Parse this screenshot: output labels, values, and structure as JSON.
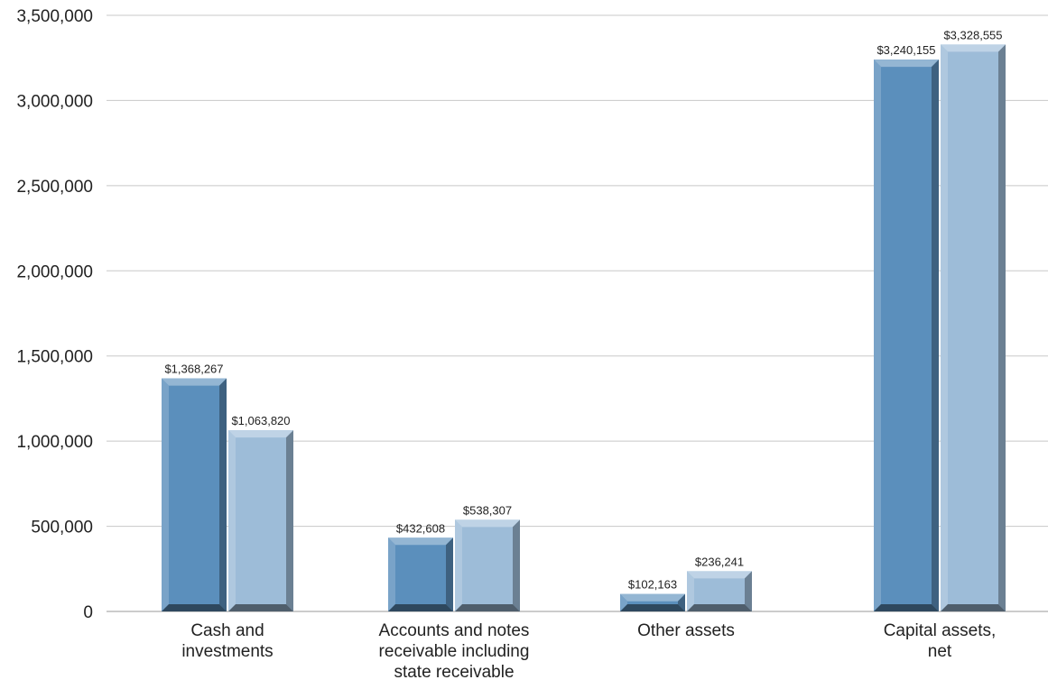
{
  "chart_data": {
    "type": "bar",
    "categories": [
      [
        "Cash and",
        "investments"
      ],
      [
        "Accounts and notes",
        "receivable including",
        "state receivable"
      ],
      [
        "Other assets"
      ],
      [
        "Capital assets,",
        "net"
      ]
    ],
    "series": [
      {
        "values": [
          1368267,
          432608,
          102163,
          3240155
        ],
        "data_labels": [
          "$1,368,267",
          "$432,608",
          "$102,163",
          "$3,240,155"
        ],
        "color": "#5b8fbc"
      },
      {
        "values": [
          1063820,
          538307,
          236241,
          3328555
        ],
        "data_labels": [
          "$1,063,820",
          "$538,307",
          "$236,241",
          "$3,328,555"
        ],
        "color": "#9dbcd8"
      }
    ],
    "ylim": [
      0,
      3500000
    ],
    "yticks": [
      0,
      500000,
      1000000,
      1500000,
      2000000,
      2500000,
      3000000,
      3500000
    ],
    "ytick_labels": [
      "0",
      "500,000",
      "1,000,000",
      "1,500,000",
      "2,000,000",
      "2,500,000",
      "3,000,000",
      "3,500,000"
    ],
    "grid": true,
    "legend": "none"
  }
}
